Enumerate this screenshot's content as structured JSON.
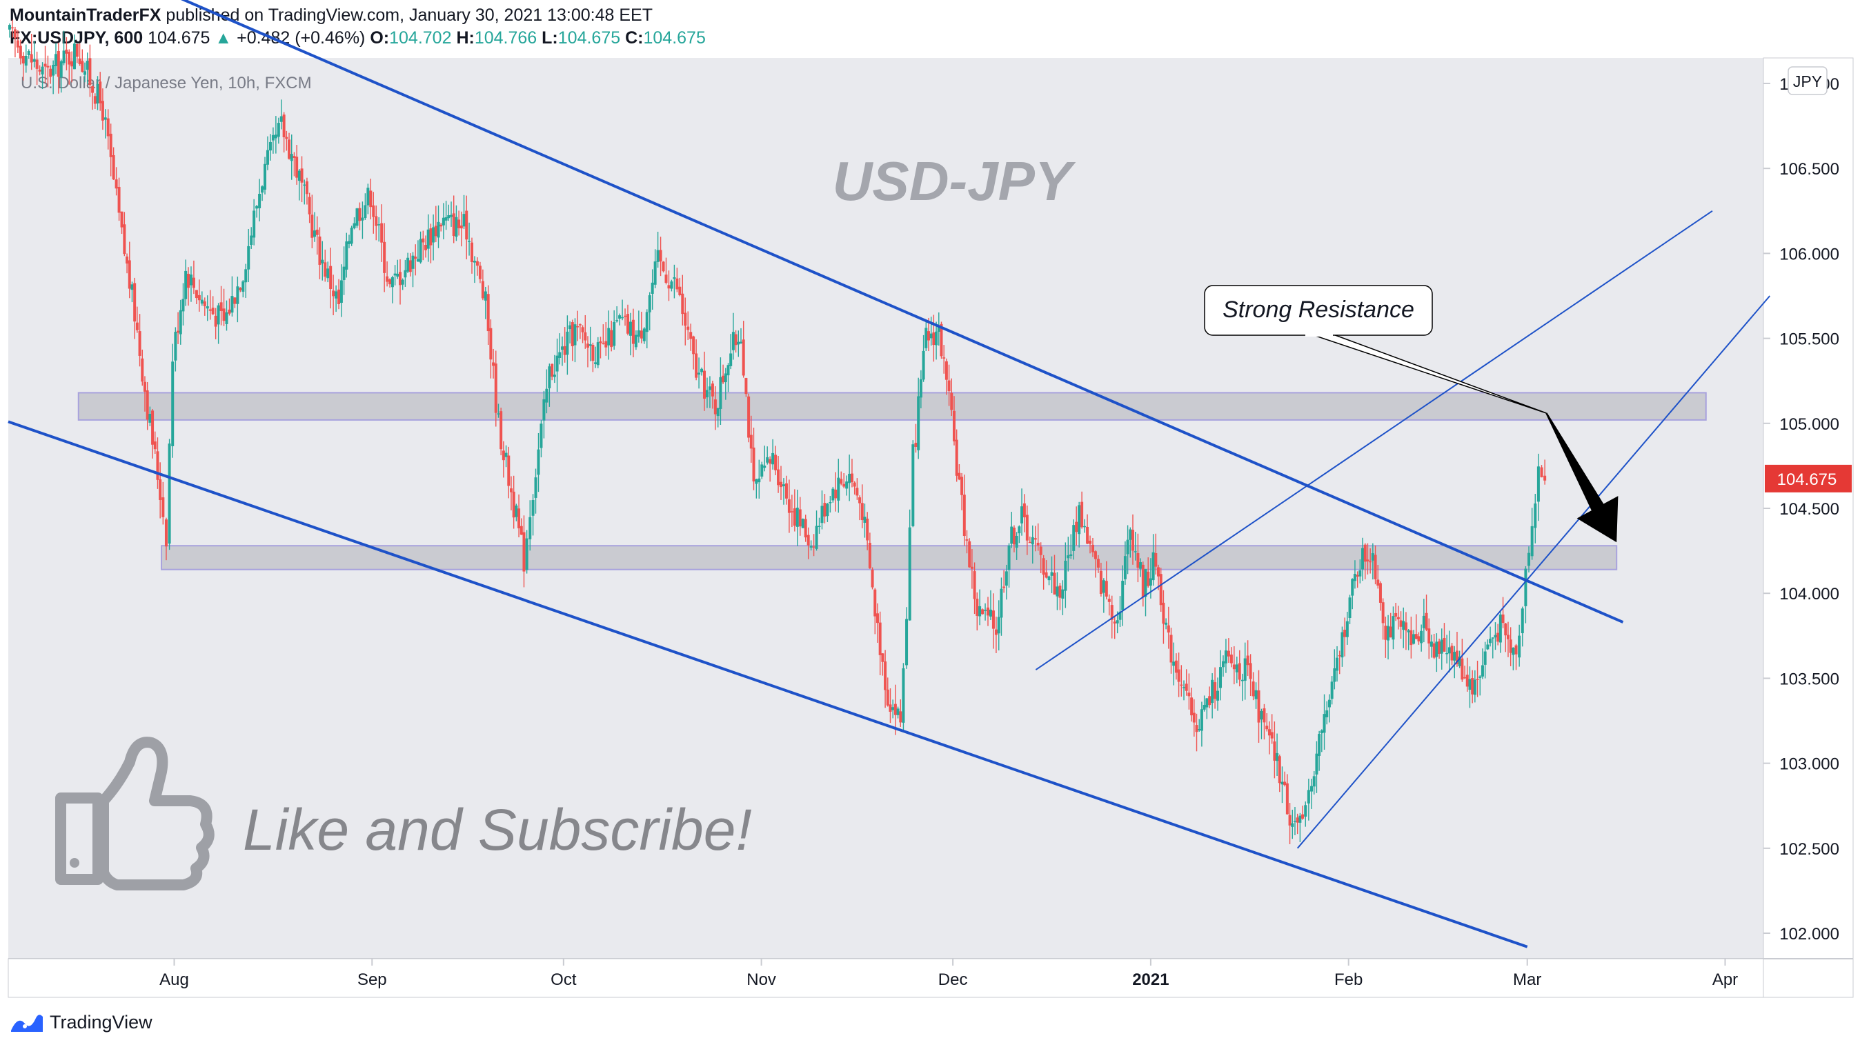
{
  "header": {
    "author": "MountainTraderFX",
    "published_text": "published on TradingView.com, January 30, 2021 13:00:48 EET",
    "symbol": "FX:USDJPY, 600",
    "last": "104.675",
    "change_arrow": "▲",
    "change": "+0.482 (+0.46%)",
    "o_label": "O:",
    "o": "104.702",
    "h_label": "H:",
    "h": "104.766",
    "l_label": "L:",
    "l": "104.675",
    "c_label": "C:",
    "c": "104.675"
  },
  "footer": {
    "brand": "TradingView",
    "brand_color": "#2962ff"
  },
  "chart_data": {
    "type": "candlestick",
    "legend": "U.S. Dollar / Japanese Yen, 10h, FXCM",
    "watermark": "USD-JPY",
    "currency": "JPY",
    "colors": {
      "up": "#26a69a",
      "down": "#ef5350",
      "background": "#e9eaee",
      "trendline": "#1e52c8",
      "zone": "#c4c5cb",
      "price_tag": "#e53935"
    },
    "x_ticks": [
      {
        "label": "Aug",
        "x": "2020-08-01"
      },
      {
        "label": "Sep",
        "x": "2020-09-01"
      },
      {
        "label": "Oct",
        "x": "2020-10-01"
      },
      {
        "label": "Nov",
        "x": "2020-11-01"
      },
      {
        "label": "Dec",
        "x": "2020-12-01"
      },
      {
        "label": "2021",
        "x": "2021-01-01",
        "bold": true
      },
      {
        "label": "Feb",
        "x": "2021-02-01"
      },
      {
        "label": "Mar",
        "x": "2021-03-01"
      },
      {
        "label": "Apr",
        "x": "2021-04-01"
      }
    ],
    "y_ticks": [
      "107.000",
      "106.500",
      "106.000",
      "105.500",
      "105.000",
      "104.500",
      "104.000",
      "103.500",
      "103.000",
      "102.500",
      "102.000"
    ],
    "ylim": [
      101.85,
      107.15
    ],
    "xlim": [
      "2020-07-06",
      "2021-04-07"
    ],
    "last_price": "104.675",
    "series": [
      {
        "x": "2020-07-06",
        "y": 107.3
      },
      {
        "x": "2020-07-12",
        "y": 107.05
      },
      {
        "x": "2020-07-17",
        "y": 107.2
      },
      {
        "x": "2020-07-21",
        "y": 106.85
      },
      {
        "x": "2020-07-24",
        "y": 106.1
      },
      {
        "x": "2020-07-26",
        "y": 105.65
      },
      {
        "x": "2020-07-28",
        "y": 105.1
      },
      {
        "x": "2020-07-30",
        "y": 104.6
      },
      {
        "x": "2020-07-31",
        "y": 104.35
      },
      {
        "x": "2020-08-01",
        "y": 105.4
      },
      {
        "x": "2020-08-03",
        "y": 105.9
      },
      {
        "x": "2020-08-06",
        "y": 105.7
      },
      {
        "x": "2020-08-09",
        "y": 105.6
      },
      {
        "x": "2020-08-12",
        "y": 105.9
      },
      {
        "x": "2020-08-15",
        "y": 106.45
      },
      {
        "x": "2020-08-18",
        "y": 106.75
      },
      {
        "x": "2020-08-20",
        "y": 106.55
      },
      {
        "x": "2020-08-24",
        "y": 106.0
      },
      {
        "x": "2020-08-27",
        "y": 105.7
      },
      {
        "x": "2020-08-29",
        "y": 106.2
      },
      {
        "x": "2020-09-01",
        "y": 106.35
      },
      {
        "x": "2020-09-04",
        "y": 105.8
      },
      {
        "x": "2020-09-08",
        "y": 106.0
      },
      {
        "x": "2020-09-12",
        "y": 106.2
      },
      {
        "x": "2020-09-16",
        "y": 106.15
      },
      {
        "x": "2020-09-19",
        "y": 105.7
      },
      {
        "x": "2020-09-21",
        "y": 105.0
      },
      {
        "x": "2020-09-23",
        "y": 104.6
      },
      {
        "x": "2020-09-25",
        "y": 104.2
      },
      {
        "x": "2020-09-26",
        "y": 104.5
      },
      {
        "x": "2020-09-29",
        "y": 105.3
      },
      {
        "x": "2020-10-03",
        "y": 105.55
      },
      {
        "x": "2020-10-07",
        "y": 105.4
      },
      {
        "x": "2020-10-10",
        "y": 105.6
      },
      {
        "x": "2020-10-13",
        "y": 105.5
      },
      {
        "x": "2020-10-16",
        "y": 105.95
      },
      {
        "x": "2020-10-19",
        "y": 105.8
      },
      {
        "x": "2020-10-22",
        "y": 105.3
      },
      {
        "x": "2020-10-25",
        "y": 105.1
      },
      {
        "x": "2020-10-27",
        "y": 105.4
      },
      {
        "x": "2020-10-29",
        "y": 105.55
      },
      {
        "x": "2020-10-31",
        "y": 104.6
      },
      {
        "x": "2020-11-03",
        "y": 104.8
      },
      {
        "x": "2020-11-06",
        "y": 104.5
      },
      {
        "x": "2020-11-09",
        "y": 104.3
      },
      {
        "x": "2020-11-12",
        "y": 104.6
      },
      {
        "x": "2020-11-15",
        "y": 104.7
      },
      {
        "x": "2020-11-17",
        "y": 104.5
      },
      {
        "x": "2020-11-19",
        "y": 103.9
      },
      {
        "x": "2020-11-21",
        "y": 103.4
      },
      {
        "x": "2020-11-23",
        "y": 103.25
      },
      {
        "x": "2020-11-24",
        "y": 103.9
      },
      {
        "x": "2020-11-25",
        "y": 104.8
      },
      {
        "x": "2020-11-27",
        "y": 105.5
      },
      {
        "x": "2020-11-29",
        "y": 105.55
      },
      {
        "x": "2020-12-01",
        "y": 105.0
      },
      {
        "x": "2020-12-03",
        "y": 104.4
      },
      {
        "x": "2020-12-05",
        "y": 103.9
      },
      {
        "x": "2020-12-08",
        "y": 103.8
      },
      {
        "x": "2020-12-10",
        "y": 104.3
      },
      {
        "x": "2020-12-12",
        "y": 104.45
      },
      {
        "x": "2020-12-15",
        "y": 104.2
      },
      {
        "x": "2020-12-18",
        "y": 104.0
      },
      {
        "x": "2020-12-21",
        "y": 104.5
      },
      {
        "x": "2020-12-24",
        "y": 104.1
      },
      {
        "x": "2020-12-27",
        "y": 103.85
      },
      {
        "x": "2020-12-29",
        "y": 104.4
      },
      {
        "x": "2020-12-31",
        "y": 104.05
      },
      {
        "x": "2021-01-02",
        "y": 104.2
      },
      {
        "x": "2021-01-04",
        "y": 103.7
      },
      {
        "x": "2021-01-06",
        "y": 103.5
      },
      {
        "x": "2021-01-08",
        "y": 103.2
      },
      {
        "x": "2021-01-10",
        "y": 103.35
      },
      {
        "x": "2021-01-13",
        "y": 103.6
      },
      {
        "x": "2021-01-16",
        "y": 103.55
      },
      {
        "x": "2021-01-19",
        "y": 103.2
      },
      {
        "x": "2021-01-21",
        "y": 103.0
      },
      {
        "x": "2021-01-23",
        "y": 102.7
      },
      {
        "x": "2021-01-25",
        "y": 102.6
      },
      {
        "x": "2021-01-26",
        "y": 102.85
      },
      {
        "x": "2021-01-28",
        "y": 103.2
      },
      {
        "x": "2021-01-30",
        "y": 103.5
      },
      {
        "x": "2021-02-01",
        "y": 103.9
      },
      {
        "x": "2021-02-03",
        "y": 104.2
      },
      {
        "x": "2021-02-05",
        "y": 104.25
      },
      {
        "x": "2021-02-07",
        "y": 103.8
      },
      {
        "x": "2021-02-09",
        "y": 103.8
      },
      {
        "x": "2021-02-11",
        "y": 103.7
      },
      {
        "x": "2021-02-13",
        "y": 103.85
      },
      {
        "x": "2021-02-15",
        "y": 103.65
      },
      {
        "x": "2021-02-17",
        "y": 103.7
      },
      {
        "x": "2021-02-19",
        "y": 103.55
      },
      {
        "x": "2021-02-21",
        "y": 103.45
      },
      {
        "x": "2021-02-23",
        "y": 103.7
      },
      {
        "x": "2021-02-25",
        "y": 103.8
      },
      {
        "x": "2021-02-27",
        "y": 103.65
      },
      {
        "x": "2021-02-28",
        "y": 103.75
      },
      {
        "x": "2021-03-01",
        "y": 104.2
      },
      {
        "x": "2021-03-02",
        "y": 104.4
      },
      {
        "x": "2021-03-03",
        "y": 104.7
      },
      {
        "x": "2021-03-04",
        "y": 104.675
      }
    ],
    "zones": [
      {
        "x0": "2020-07-17",
        "x1": "2021-03-29",
        "y0": 105.02,
        "y1": 105.18
      },
      {
        "x0": "2020-07-30",
        "x1": "2021-03-15",
        "y0": 104.14,
        "y1": 104.28
      }
    ],
    "trendlines": [
      {
        "x0": "2020-07-06",
        "y0": 105.01,
        "x1": "2021-03-01",
        "y1": 101.92,
        "width": 4
      },
      {
        "x0": "2020-08-02",
        "y0": 107.5,
        "x1": "2021-03-16",
        "y1": 103.83,
        "width": 4
      },
      {
        "x0": "2020-12-14",
        "y0": 103.55,
        "x1": "2021-03-30",
        "y1": 106.25,
        "width": 2
      },
      {
        "x0": "2021-01-24",
        "y0": 102.5,
        "x1": "2021-04-08",
        "y1": 105.75,
        "width": 2
      }
    ],
    "callout": {
      "text": "Strong Resistance",
      "target_x": "2021-03-04",
      "target_y": 105.06
    },
    "forecast_arrow": {
      "x0": "2021-03-04",
      "y0": 105.06,
      "x1": "2021-03-15",
      "y1": 104.3
    },
    "annotation": "Like and Subscribe!"
  }
}
